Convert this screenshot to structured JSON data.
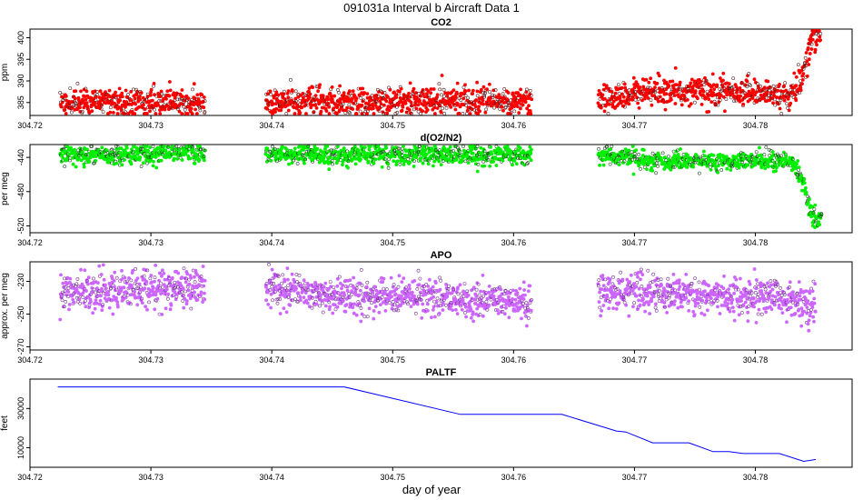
{
  "figure": {
    "title": "091031a   Interval b Aircraft Data 1",
    "xlabel": "day of year"
  },
  "chart_data": [
    {
      "type": "scatter",
      "title": "CO2",
      "ylabel": "ppm",
      "xlim": [
        304.72,
        304.788
      ],
      "ylim": [
        382,
        402
      ],
      "x_ticks": [
        "304.72",
        "304.73",
        "304.74",
        "304.75",
        "304.76",
        "304.77",
        "304.78"
      ],
      "y_ticks": [
        "385",
        "390",
        "395",
        "400"
      ],
      "colors": {
        "points": "#ff0000",
        "outline": "#5a1a1a"
      },
      "series": [
        {
          "values": [
            [
              304.7225,
              385.2
            ],
            [
              304.7245,
              385.0
            ],
            [
              304.7265,
              385.4
            ],
            [
              304.7285,
              385.1
            ],
            [
              304.7305,
              385.3
            ],
            [
              304.7325,
              385.0
            ],
            [
              304.7345,
              385.2
            ],
            [
              304.7395,
              385.5
            ],
            [
              304.7415,
              385.3
            ],
            [
              304.7435,
              385.6
            ],
            [
              304.7455,
              385.2
            ],
            [
              304.7475,
              385.4
            ],
            [
              304.7495,
              385.1
            ],
            [
              304.7515,
              385.5
            ],
            [
              304.7535,
              385.2
            ],
            [
              304.7555,
              385.4
            ],
            [
              304.7575,
              385.2
            ],
            [
              304.7595,
              385.1
            ],
            [
              304.7615,
              385.0
            ],
            [
              304.767,
              385.4
            ],
            [
              304.769,
              386.6
            ],
            [
              304.771,
              387.3
            ],
            [
              304.773,
              387.5
            ],
            [
              304.775,
              387.7
            ],
            [
              304.777,
              387.5
            ],
            [
              304.779,
              387.4
            ],
            [
              304.781,
              386.8
            ],
            [
              304.783,
              386.3
            ],
            [
              304.7835,
              388.0
            ],
            [
              304.784,
              392.0
            ],
            [
              304.7843,
              395.0
            ],
            [
              304.7846,
              399.0
            ],
            [
              304.785,
              400.8
            ],
            [
              304.7854,
              401.0
            ]
          ]
        }
      ]
    },
    {
      "type": "scatter",
      "title": "d(O2/N2)",
      "ylabel": "per meg",
      "xlim": [
        304.72,
        304.788
      ],
      "ylim": [
        -528,
        -425
      ],
      "x_ticks": [
        "304.72",
        "304.73",
        "304.74",
        "304.75",
        "304.76",
        "304.77",
        "304.78"
      ],
      "y_ticks": [
        "-440",
        "-480",
        "-520"
      ],
      "colors": {
        "points": "#00ee00",
        "outline": "#1a4a1a"
      },
      "series": [
        {
          "values": [
            [
              304.7225,
              -436.0
            ],
            [
              304.7245,
              -437.0
            ],
            [
              304.7265,
              -436.5
            ],
            [
              304.7285,
              -437.5
            ],
            [
              304.7305,
              -435.5
            ],
            [
              304.7325,
              -435.0
            ],
            [
              304.7345,
              -434.5
            ],
            [
              304.7395,
              -435.5
            ],
            [
              304.7415,
              -436.5
            ],
            [
              304.7435,
              -437.0
            ],
            [
              304.7455,
              -437.5
            ],
            [
              304.7475,
              -436.5
            ],
            [
              304.7495,
              -437.0
            ],
            [
              304.7515,
              -437.5
            ],
            [
              304.7535,
              -436.5
            ],
            [
              304.7555,
              -437.5
            ],
            [
              304.7575,
              -438.5
            ],
            [
              304.7595,
              -438.0
            ],
            [
              304.7615,
              -438.5
            ],
            [
              304.767,
              -437.0
            ],
            [
              304.769,
              -440.0
            ],
            [
              304.771,
              -444.5
            ],
            [
              304.773,
              -445.0
            ],
            [
              304.775,
              -444.5
            ],
            [
              304.777,
              -444.0
            ],
            [
              304.779,
              -443.5
            ],
            [
              304.781,
              -443.5
            ],
            [
              304.7828,
              -443.0
            ],
            [
              304.7835,
              -455.0
            ],
            [
              304.784,
              -470.0
            ],
            [
              304.7843,
              -490.0
            ],
            [
              304.7847,
              -508.0
            ],
            [
              304.7851,
              -513.0
            ],
            [
              304.7855,
              -512.0
            ]
          ]
        }
      ]
    },
    {
      "type": "scatter",
      "title": "APO",
      "ylabel": "approx. per meg",
      "xlim": [
        304.72,
        304.788
      ],
      "ylim": [
        -272,
        -218
      ],
      "x_ticks": [
        "304.72",
        "304.73",
        "304.74",
        "304.75",
        "304.76",
        "304.77",
        "304.78"
      ],
      "y_ticks": [
        "-230",
        "-250",
        "-270"
      ],
      "colors": {
        "points": "#cc66ff",
        "outline": "#7a2f9a"
      },
      "series": [
        {
          "values": [
            [
              304.7225,
              -236.0
            ],
            [
              304.7245,
              -237.0
            ],
            [
              304.7265,
              -236.5
            ],
            [
              304.7285,
              -236.0
            ],
            [
              304.7305,
              -235.0
            ],
            [
              304.7325,
              -234.0
            ],
            [
              304.7345,
              -234.5
            ],
            [
              304.7395,
              -235.0
            ],
            [
              304.7415,
              -236.5
            ],
            [
              304.7435,
              -237.5
            ],
            [
              304.7455,
              -238.0
            ],
            [
              304.7475,
              -238.5
            ],
            [
              304.7495,
              -239.0
            ],
            [
              304.7515,
              -239.5
            ],
            [
              304.7535,
              -240.0
            ],
            [
              304.7555,
              -241.0
            ],
            [
              304.7575,
              -242.0
            ],
            [
              304.7595,
              -242.5
            ],
            [
              304.7615,
              -243.0
            ],
            [
              304.767,
              -234.5
            ],
            [
              304.769,
              -236.0
            ],
            [
              304.771,
              -237.0
            ],
            [
              304.773,
              -237.5
            ],
            [
              304.775,
              -238.0
            ],
            [
              304.777,
              -238.5
            ],
            [
              304.779,
              -239.0
            ],
            [
              304.781,
              -239.0
            ],
            [
              304.783,
              -241.0
            ],
            [
              304.784,
              -245.0
            ],
            [
              304.785,
              -248.0
            ]
          ]
        }
      ]
    },
    {
      "type": "line",
      "title": "PALTF",
      "ylabel": "feet",
      "xlim": [
        304.72,
        304.788
      ],
      "ylim": [
        0,
        45000
      ],
      "x_ticks": [
        "304.72",
        "304.73",
        "304.74",
        "304.75",
        "304.76",
        "304.77",
        "304.78"
      ],
      "y_ticks": [
        "10000",
        "30000"
      ],
      "colors": {
        "line": "#0000ff"
      },
      "series": [
        {
          "values": [
            [
              304.7223,
              41000
            ],
            [
              304.746,
              41000
            ],
            [
              304.7556,
              27000
            ],
            [
              304.764,
              27000
            ],
            [
              304.7685,
              18500
            ],
            [
              304.7693,
              18000
            ],
            [
              304.7715,
              12500
            ],
            [
              304.7745,
              12500
            ],
            [
              304.7765,
              8000
            ],
            [
              304.7778,
              8000
            ],
            [
              304.779,
              7000
            ],
            [
              304.782,
              7000
            ],
            [
              304.784,
              3000
            ],
            [
              304.785,
              4000
            ]
          ]
        }
      ]
    }
  ]
}
